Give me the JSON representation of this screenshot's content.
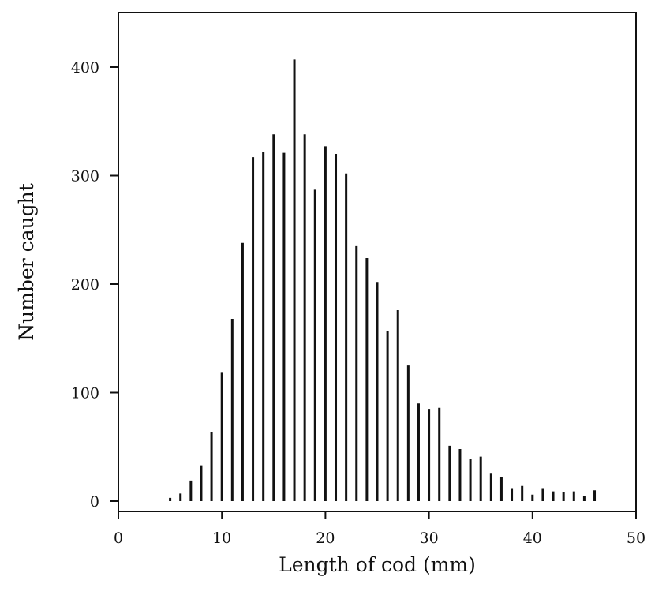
{
  "chart_data": {
    "type": "bar",
    "title": "",
    "xlabel": "Length of cod (mm)",
    "ylabel": "Number caught",
    "xlim": [
      0,
      50
    ],
    "ylim": [
      0,
      450
    ],
    "xticks": [
      0,
      10,
      20,
      30,
      40,
      50
    ],
    "yticks": [
      0,
      100,
      200,
      300,
      400
    ],
    "grid": false,
    "x": [
      5,
      6,
      7,
      8,
      9,
      10,
      11,
      12,
      13,
      14,
      15,
      16,
      17,
      18,
      19,
      20,
      21,
      22,
      23,
      24,
      25,
      26,
      27,
      28,
      29,
      30,
      31,
      32,
      33,
      34,
      35,
      36,
      37,
      38,
      39,
      40,
      41,
      42,
      43,
      44,
      45,
      46
    ],
    "values": [
      3,
      7,
      19,
      33,
      64,
      119,
      168,
      238,
      317,
      322,
      338,
      321,
      407,
      338,
      287,
      327,
      320,
      302,
      235,
      224,
      202,
      157,
      176,
      125,
      90,
      85,
      86,
      51,
      48,
      39,
      41,
      26,
      22,
      12,
      14,
      6,
      12,
      9,
      8,
      9,
      5,
      10
    ]
  }
}
